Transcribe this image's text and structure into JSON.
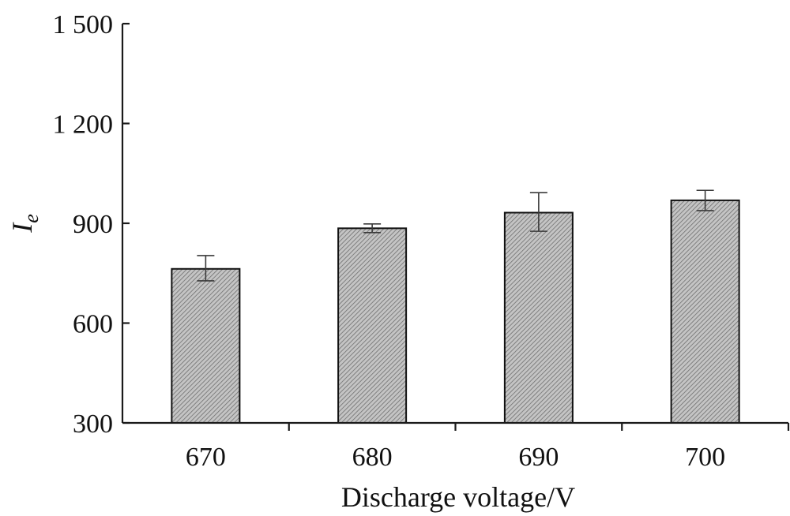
{
  "chart_data": {
    "type": "bar",
    "title": "",
    "xlabel": "Discharge voltage/V",
    "ylabel": {
      "main": "I",
      "sub": "e"
    },
    "categories": [
      "670",
      "680",
      "690",
      "700"
    ],
    "values": [
      763,
      885,
      932,
      969
    ],
    "errors": [
      {
        "low": 727,
        "high": 803
      },
      {
        "low": 872,
        "high": 898
      },
      {
        "low": 876,
        "high": 992
      },
      {
        "low": 938,
        "high": 999
      }
    ],
    "ylim": [
      300,
      1500
    ],
    "yticks": [
      300,
      600,
      900,
      1200,
      1500
    ],
    "ytick_labels": [
      "300",
      "600",
      "900",
      "1 200",
      "1 500"
    ],
    "grid": false,
    "bar_fill": "hatched-gray",
    "colors": {
      "bar_fill": "#b9b9b9",
      "hatch": "#6e6e6e",
      "bar_edge": "#111111",
      "axis": "#1a1a1a"
    }
  }
}
